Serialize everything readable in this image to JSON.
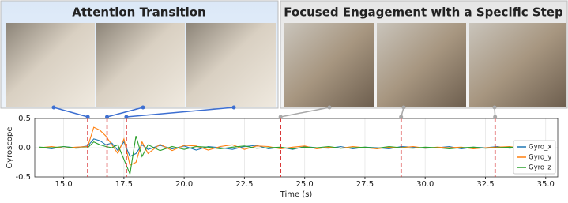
{
  "panels": [
    {
      "title": "Attention Transition"
    },
    {
      "title": "Focused Engagement with a Specific Step"
    }
  ],
  "chart_data": {
    "type": "line",
    "xlabel": "Time (s)",
    "ylabel": "Gyroscope",
    "xlim": [
      13.8,
      35.5
    ],
    "ylim": [
      -0.5,
      0.5
    ],
    "xticks": [
      {
        "value": 15,
        "label": "15.0"
      },
      17.5,
      {
        "value": 20,
        "label": "20.0"
      },
      22.5,
      {
        "value": 25,
        "label": "25.0"
      },
      27.5,
      {
        "value": 30,
        "label": "30.0"
      },
      32.5,
      {
        "value": 35,
        "label": "35.0"
      }
    ],
    "yticks": [
      -0.5,
      {
        "value": 0,
        "label": "0.0"
      },
      0.5
    ],
    "grid": true,
    "legend": "right",
    "events": [
      16.0,
      16.8,
      17.6,
      24.0,
      29.0,
      32.9
    ],
    "event_color": "#d62728",
    "x": [
      14,
      14.5,
      15,
      15.5,
      16,
      16.25,
      16.5,
      16.75,
      17,
      17.25,
      17.5,
      17.75,
      18,
      18.25,
      18.5,
      19,
      19.5,
      20,
      20.5,
      21,
      21.5,
      22,
      22.5,
      23,
      23.5,
      24,
      24.5,
      25,
      25.5,
      26,
      26.5,
      27,
      27.5,
      28,
      28.5,
      29,
      29.5,
      30,
      30.5,
      31,
      31.5,
      32,
      32.5,
      33,
      33.5,
      34,
      34.5,
      35
    ],
    "series": [
      {
        "name": "Gyro_x",
        "color": "#1f77b4",
        "values": [
          0.01,
          -0.02,
          0.02,
          0.0,
          0.03,
          0.15,
          0.12,
          0.05,
          0.08,
          -0.05,
          0.1,
          -0.15,
          -0.1,
          0.05,
          -0.03,
          0.04,
          -0.02,
          0.03,
          -0.04,
          0.02,
          0.0,
          -0.03,
          0.02,
          0.04,
          -0.02,
          0.01,
          -0.03,
          0.02,
          0.0,
          -0.01,
          0.02,
          -0.02,
          0.01,
          0.0,
          -0.02,
          0.02,
          0.01,
          -0.01,
          0.0,
          0.02,
          -0.02,
          0.01,
          0.0,
          0.02,
          -0.01,
          0.01,
          0.0,
          -0.01
        ]
      },
      {
        "name": "Gyro_y",
        "color": "#ff7f0e",
        "values": [
          0.0,
          0.02,
          -0.01,
          0.01,
          0.02,
          0.35,
          0.3,
          0.2,
          0.05,
          -0.1,
          0.15,
          -0.3,
          -0.25,
          0.1,
          -0.1,
          0.06,
          -0.05,
          0.04,
          0.03,
          -0.04,
          0.02,
          0.05,
          -0.03,
          0.03,
          0.02,
          -0.02,
          0.01,
          0.03,
          -0.02,
          0.01,
          -0.01,
          0.02,
          0.0,
          -0.02,
          0.01,
          0.0,
          0.02,
          -0.01,
          0.01,
          0.0,
          0.01,
          -0.02,
          0.0,
          0.01,
          0.02,
          -0.01,
          0.0,
          0.01
        ]
      },
      {
        "name": "Gyro_z",
        "color": "#2ca02c",
        "values": [
          0.01,
          0.0,
          0.02,
          -0.01,
          0.0,
          0.1,
          0.05,
          0.02,
          0.0,
          0.05,
          -0.2,
          -0.45,
          0.2,
          -0.15,
          0.05,
          -0.05,
          0.02,
          -0.03,
          0.02,
          0.01,
          -0.02,
          0.01,
          0.03,
          -0.01,
          0.0,
          0.01,
          -0.02,
          0.01,
          0.0,
          0.02,
          -0.01,
          0.0,
          0.01,
          -0.01,
          0.02,
          0.0,
          -0.01,
          0.01,
          0.0,
          -0.02,
          0.0,
          0.01,
          -0.01,
          0.0,
          0.01,
          0.0,
          -0.01,
          0.0
        ]
      }
    ]
  }
}
